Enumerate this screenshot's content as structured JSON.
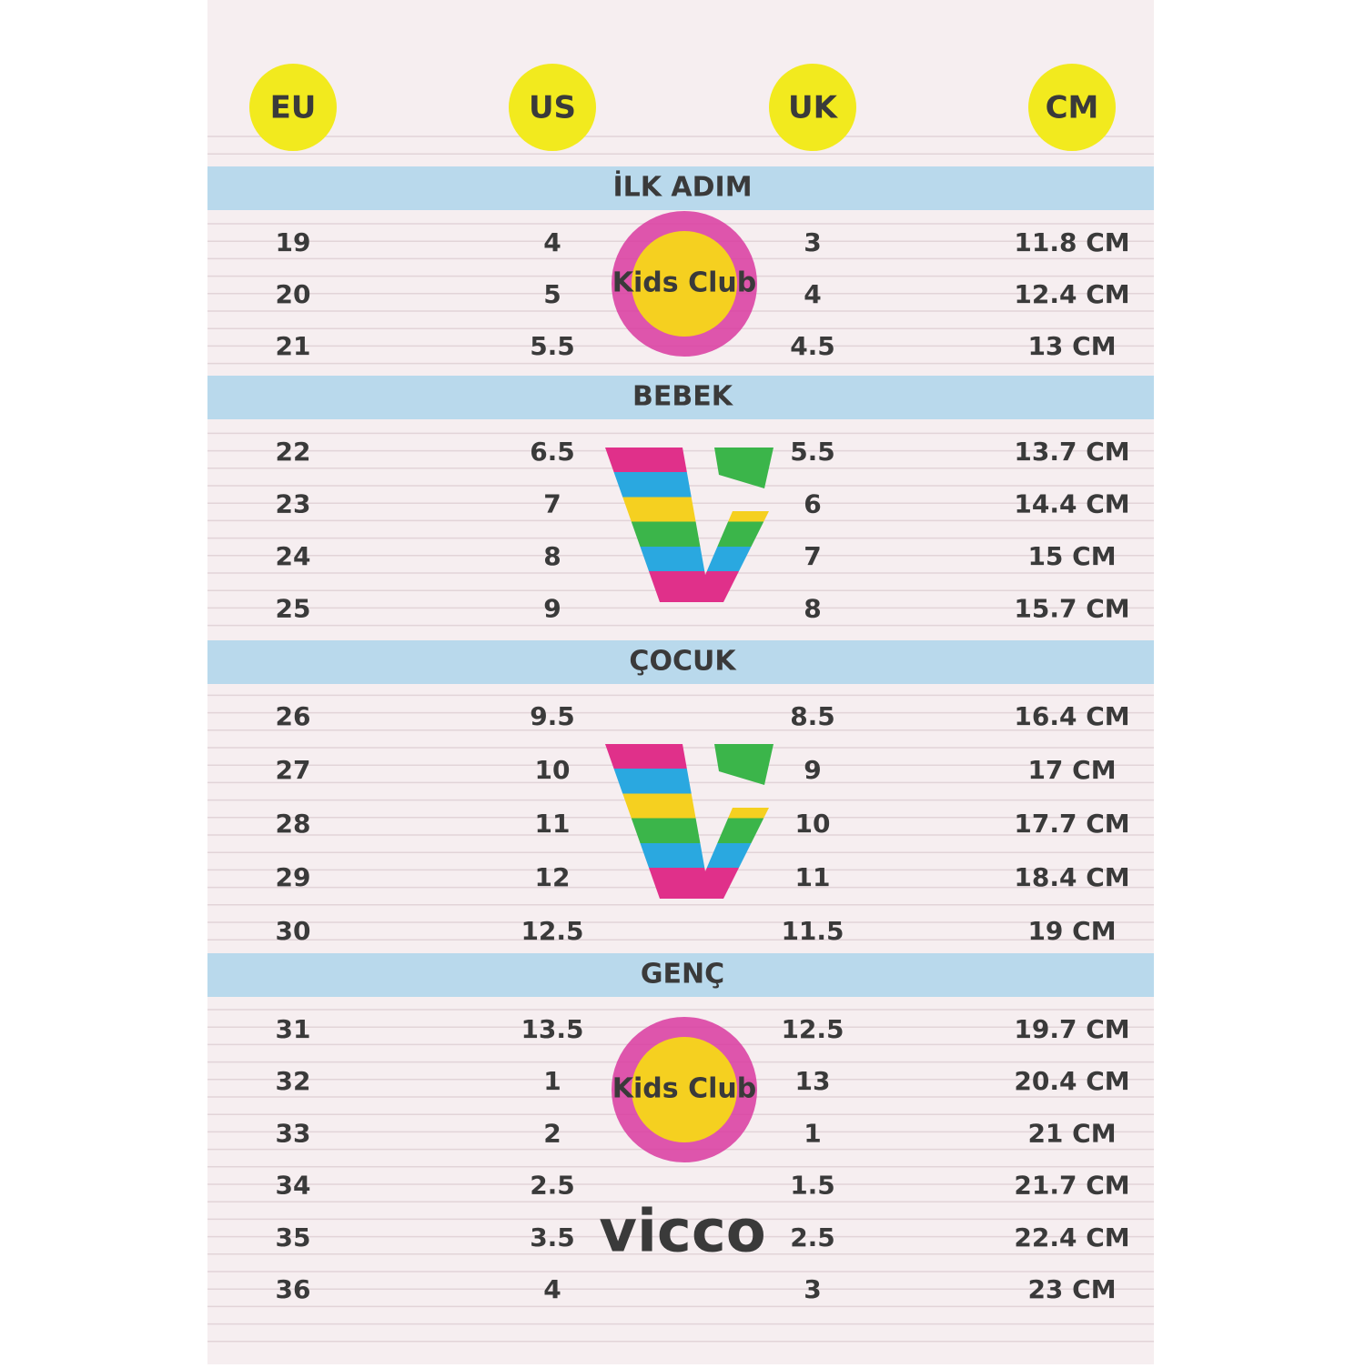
{
  "headers": [
    "EU",
    "US",
    "UK",
    "CM"
  ],
  "logos": {
    "kids_club": "Kids Club",
    "brand": "vicco"
  },
  "sections": [
    {
      "title": "İLK ADIM",
      "rows": [
        [
          19,
          4,
          3,
          "11.8 CM"
        ],
        [
          20,
          5,
          4,
          "12.4 CM"
        ],
        [
          21,
          5.5,
          4.5,
          "13 CM"
        ]
      ]
    },
    {
      "title": "BEBEK",
      "rows": [
        [
          22,
          6.5,
          5.5,
          "13.7 CM"
        ],
        [
          23,
          7,
          6,
          "14.4 CM"
        ],
        [
          24,
          8,
          7,
          "15 CM"
        ],
        [
          25,
          9,
          8,
          "15.7 CM"
        ]
      ]
    },
    {
      "title": "ÇOCUK",
      "rows": [
        [
          26,
          9.5,
          8.5,
          "16.4 CM"
        ],
        [
          27,
          10,
          9,
          "17 CM"
        ],
        [
          28,
          11,
          10,
          "17.7 CM"
        ],
        [
          29,
          12,
          11,
          "18.4 CM"
        ],
        [
          30,
          12.5,
          11.5,
          "19 CM"
        ]
      ]
    },
    {
      "title": "GENÇ",
      "rows": [
        [
          31,
          13.5,
          12.5,
          "19.7 CM"
        ],
        [
          32,
          1,
          13,
          "20.4 CM"
        ],
        [
          33,
          2,
          1,
          "21 CM"
        ],
        [
          34,
          2.5,
          1.5,
          "21.7 CM"
        ],
        [
          35,
          3.5,
          2.5,
          "22.4 CM"
        ],
        [
          36,
          4,
          3,
          "23 CM"
        ]
      ]
    }
  ]
}
